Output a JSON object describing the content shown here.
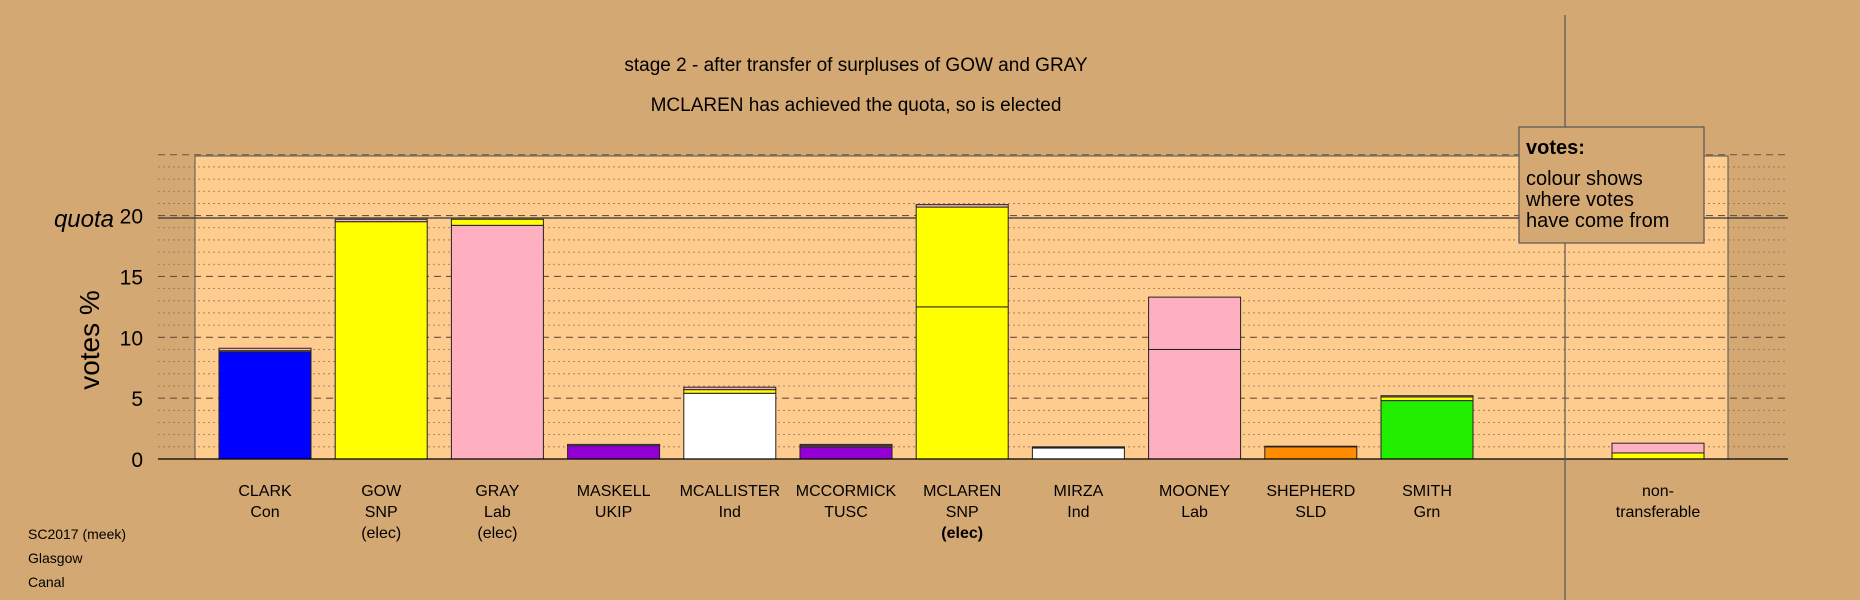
{
  "chart_data": {
    "type": "bar",
    "title": "stage 2 - after transfer of surpluses of GOW and GRAY",
    "subtitle": "MCLAREN has achieved the quota, so is elected",
    "ylabel": "votes %",
    "quota_label": "quota",
    "quota_value": 20,
    "ylim": [
      0,
      25
    ],
    "yticks": [
      0,
      5,
      10,
      15,
      20
    ],
    "grid": true,
    "legend": {
      "title": "votes:",
      "lines": [
        "colour shows",
        "where votes",
        "have come from"
      ],
      "placement": "top-right"
    },
    "footnote": [
      "SC2017 (meek)",
      "Glasgow",
      "Canal"
    ],
    "colors": {
      "SNP": "#ffff00",
      "Lab": "#ffb0c0",
      "Con": "#0000ff",
      "UKIP": "#9400d3",
      "TUSC": "#9400d3",
      "Ind": "#ffffff",
      "SLD": "#ff8c00",
      "Grn": "#22ee00",
      "plot_bg": "#ffcc8f",
      "page_bg": "#d4a872"
    },
    "candidates": [
      {
        "name": "CLARK",
        "party": "Con",
        "status": "",
        "segments": [
          {
            "from": "Con",
            "value": 8.8
          },
          {
            "from": "SNP",
            "value": 0.1
          },
          {
            "from": "Lab",
            "value": 0.2
          }
        ]
      },
      {
        "name": "GOW",
        "party": "SNP",
        "status": "(elec)",
        "segments": [
          {
            "from": "SNP",
            "value": 19.5
          },
          {
            "from": "Lab",
            "value": 0.2
          }
        ]
      },
      {
        "name": "GRAY",
        "party": "Lab",
        "status": "(elec)",
        "segments": [
          {
            "from": "Lab",
            "value": 19.2
          },
          {
            "from": "SNP",
            "value": 0.5
          }
        ]
      },
      {
        "name": "MASKELL",
        "party": "UKIP",
        "status": "",
        "segments": [
          {
            "from": "UKIP",
            "value": 1.1
          },
          {
            "from": "Lab",
            "value": 0.1
          }
        ]
      },
      {
        "name": "MCALLISTER",
        "party": "Ind",
        "status": "",
        "segments": [
          {
            "from": "Ind",
            "value": 5.4
          },
          {
            "from": "SNP",
            "value": 0.3
          },
          {
            "from": "Lab",
            "value": 0.2
          }
        ]
      },
      {
        "name": "MCCORMICK",
        "party": "TUSC",
        "status": "",
        "segments": [
          {
            "from": "TUSC",
            "value": 1.0
          },
          {
            "from": "SNP",
            "value": 0.1
          },
          {
            "from": "Lab",
            "value": 0.1
          }
        ]
      },
      {
        "name": "MCLAREN",
        "party": "SNP",
        "status": "(elec)",
        "segments": [
          {
            "from": "SNP",
            "value": 12.5
          },
          {
            "from": "SNP",
            "value": 8.2
          },
          {
            "from": "Lab",
            "value": 0.2
          }
        ]
      },
      {
        "name": "MIRZA",
        "party": "Ind",
        "status": "",
        "segments": [
          {
            "from": "Ind",
            "value": 0.9
          },
          {
            "from": "SNP",
            "value": 0.05
          },
          {
            "from": "Lab",
            "value": 0.05
          }
        ]
      },
      {
        "name": "MOONEY",
        "party": "Lab",
        "status": "",
        "segments": [
          {
            "from": "Lab",
            "value": 9.0
          },
          {
            "from": "Lab",
            "value": 4.3
          }
        ]
      },
      {
        "name": "SHEPHERD",
        "party": "SLD",
        "status": "",
        "segments": [
          {
            "from": "SLD",
            "value": 1.0
          },
          {
            "from": "SNP",
            "value": 0.05
          }
        ]
      },
      {
        "name": "SMITH",
        "party": "Grn",
        "status": "",
        "segments": [
          {
            "from": "Grn",
            "value": 4.8
          },
          {
            "from": "SNP",
            "value": 0.3
          },
          {
            "from": "Lab",
            "value": 0.1
          }
        ]
      }
    ],
    "nontransferable": {
      "label": [
        "non-",
        "transferable"
      ],
      "segments": [
        {
          "from": "SNP",
          "value": 0.5
        },
        {
          "from": "Lab",
          "value": 0.8
        }
      ]
    }
  }
}
